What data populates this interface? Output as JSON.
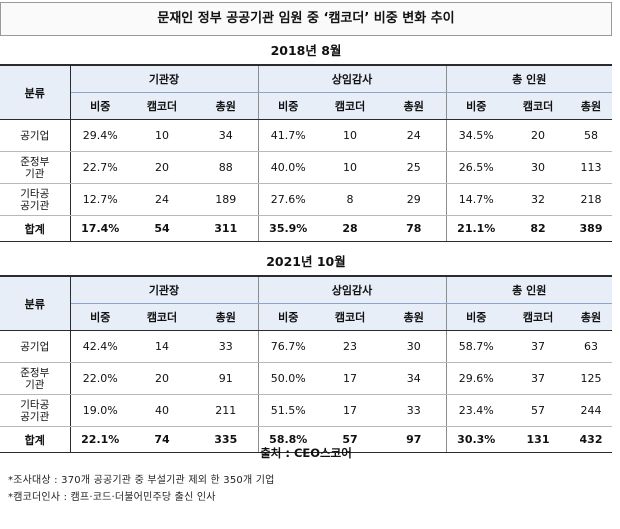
{
  "title": "문재인 정부 공공기관 임원 중 ‘캠코더’ 비중 변화 추이",
  "group_headers": [
    "분류",
    "기관장",
    "상임감사",
    "총 인원"
  ],
  "sub_headers": [
    "비중",
    "캠코더",
    "총원"
  ],
  "periods": [
    {
      "label": "2018년  8월",
      "rows": [
        {
          "category": "공기업",
          "cells": [
            "29.4%",
            "10",
            "34",
            "41.7%",
            "10",
            "24",
            "34.5%",
            "20",
            "58"
          ]
        },
        {
          "category": "준정부\n기관",
          "cells": [
            "22.7%",
            "20",
            "88",
            "40.0%",
            "10",
            "25",
            "26.5%",
            "30",
            "113"
          ]
        },
        {
          "category": "기타공\n공기관",
          "cells": [
            "12.7%",
            "24",
            "189",
            "27.6%",
            "8",
            "29",
            "14.7%",
            "32",
            "218"
          ]
        }
      ],
      "total": {
        "category": "합계",
        "cells": [
          "17.4%",
          "54",
          "311",
          "35.9%",
          "28",
          "78",
          "21.1%",
          "82",
          "389"
        ]
      }
    },
    {
      "label": "2021년  10월",
      "rows": [
        {
          "category": "공기업",
          "cells": [
            "42.4%",
            "14",
            "33",
            "76.7%",
            "23",
            "30",
            "58.7%",
            "37",
            "63"
          ]
        },
        {
          "category": "준정부\n기관",
          "cells": [
            "22.0%",
            "20",
            "91",
            "50.0%",
            "17",
            "34",
            "29.6%",
            "37",
            "125"
          ]
        },
        {
          "category": "기타공\n공기관",
          "cells": [
            "19.0%",
            "40",
            "211",
            "51.5%",
            "17",
            "33",
            "23.4%",
            "57",
            "244"
          ]
        }
      ],
      "total": {
        "category": "합계",
        "cells": [
          "22.1%",
          "74",
          "335",
          "58.8%",
          "57",
          "97",
          "30.3%",
          "131",
          "432"
        ]
      }
    }
  ],
  "source": "출처 : CEO스코어",
  "notes": [
    "*조사대상 : 370개 공공기관 중 부설기관 제외 한 350개 기업",
    "*캠코더인사 : 캠프·코드·더불어민주당 출신 인사"
  ]
}
